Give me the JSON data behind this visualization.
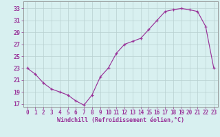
{
  "x": [
    0,
    1,
    2,
    3,
    4,
    5,
    6,
    7,
    8,
    9,
    10,
    11,
    12,
    13,
    14,
    15,
    16,
    17,
    18,
    19,
    20,
    21,
    22,
    23
  ],
  "y": [
    23,
    22,
    20.5,
    19.5,
    19,
    18.5,
    17.5,
    16.8,
    18.5,
    21.5,
    23,
    25.5,
    27,
    27.5,
    28,
    29.5,
    31,
    32.5,
    32.8,
    33,
    32.8,
    32.5,
    30,
    23
  ],
  "line_color": "#993399",
  "marker": "+",
  "bg_color": "#d8f0f0",
  "grid_color": "#b8d0d0",
  "xlabel": "Windchill (Refroidissement éolien,°C)",
  "xlabel_color": "#993399",
  "tick_color": "#993399",
  "ylabel_ticks": [
    17,
    19,
    21,
    23,
    25,
    27,
    29,
    31,
    33
  ],
  "xlim": [
    -0.5,
    23.5
  ],
  "ylim": [
    16.5,
    34.2
  ],
  "xtick_labels": [
    "0",
    "1",
    "2",
    "3",
    "4",
    "5",
    "6",
    "7",
    "8",
    "9",
    "10",
    "11",
    "12",
    "13",
    "14",
    "15",
    "16",
    "17",
    "18",
    "19",
    "20",
    "21",
    "22",
    "23"
  ],
  "title_fontsize": 5.5,
  "xlabel_fontsize": 6.0,
  "ytick_fontsize": 6.0,
  "xtick_fontsize": 5.5
}
